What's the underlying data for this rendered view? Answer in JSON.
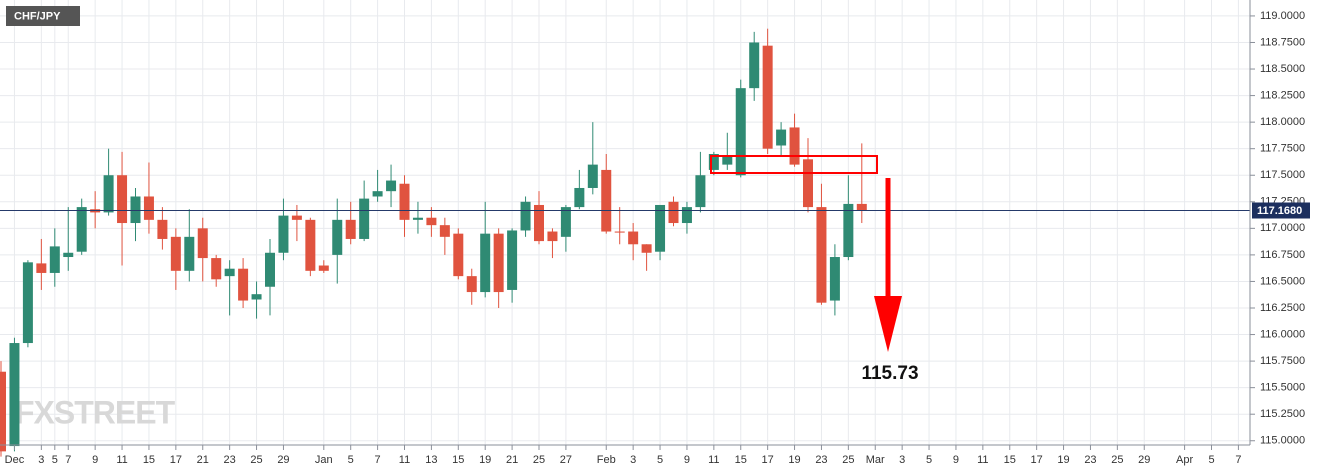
{
  "chart_data": {
    "type": "candlestick",
    "symbol": "CHF/JPY",
    "watermark": "FXSTREET",
    "categories": [
      null,
      "Dec",
      null,
      "3",
      "5",
      "7",
      null,
      "9",
      null,
      "11",
      null,
      "15",
      null,
      "17",
      null,
      "21",
      null,
      "23",
      null,
      "25",
      null,
      "29",
      null,
      null,
      "Jan",
      null,
      "5",
      null,
      "7",
      null,
      "11",
      null,
      "13",
      null,
      "15",
      null,
      "19",
      null,
      "21",
      null,
      "25",
      null,
      "27",
      null,
      null,
      "Feb",
      null,
      "3",
      null,
      "5",
      null,
      "9",
      null,
      "11",
      null,
      "15",
      null,
      "17",
      null,
      "19",
      null,
      "23",
      null,
      "25",
      null,
      "Mar",
      null,
      "3",
      null,
      "5",
      null,
      "9",
      null,
      "11",
      null,
      "15",
      null,
      "17",
      null,
      "19",
      null,
      "23",
      null,
      "25",
      null,
      "29",
      null,
      null,
      "Apr",
      null,
      "5",
      null,
      "7",
      null
    ],
    "open": [
      115.65,
      114.95,
      115.92,
      116.67,
      116.58,
      116.73,
      116.78,
      117.18,
      117.15,
      117.5,
      117.05,
      117.3,
      117.08,
      116.92,
      116.6,
      117.0,
      116.72,
      116.55,
      116.62,
      116.33,
      116.45,
      116.77,
      117.12,
      117.08,
      116.65,
      116.75,
      117.08,
      116.9,
      117.3,
      117.35,
      117.42,
      117.08,
      117.1,
      117.03,
      116.95,
      116.55,
      116.4,
      116.95,
      116.42,
      116.98,
      117.22,
      116.97,
      116.92,
      117.2,
      117.38,
      117.55,
      116.97,
      116.97,
      116.85,
      116.78,
      117.25,
      117.05,
      117.2,
      117.55,
      117.6,
      117.5,
      118.32,
      118.72,
      117.78,
      117.95,
      117.65,
      117.2,
      116.32,
      116.73,
      117.23,
      null,
      null,
      null,
      null,
      null,
      null,
      null,
      null,
      null,
      null,
      null,
      null,
      null,
      null,
      null,
      null,
      null,
      null,
      null,
      null,
      null,
      null,
      null,
      null,
      null,
      null,
      null,
      null,
      null
    ],
    "high": [
      115.75,
      115.97,
      116.7,
      116.9,
      117.0,
      117.2,
      117.28,
      117.35,
      117.75,
      117.72,
      117.38,
      117.62,
      117.2,
      117.0,
      117.18,
      117.1,
      116.75,
      116.7,
      116.72,
      116.5,
      116.9,
      117.28,
      117.22,
      117.1,
      116.7,
      117.28,
      117.25,
      117.45,
      117.55,
      117.6,
      117.5,
      117.25,
      117.2,
      117.1,
      117.0,
      116.62,
      117.25,
      117.0,
      117.0,
      117.3,
      117.35,
      117.0,
      117.22,
      117.55,
      118.0,
      117.7,
      117.2,
      117.05,
      116.85,
      117.22,
      117.3,
      117.25,
      117.72,
      117.72,
      117.9,
      118.4,
      118.85,
      118.88,
      118.0,
      118.08,
      117.85,
      117.42,
      116.85,
      117.5,
      117.8,
      null,
      null,
      null,
      null,
      null,
      null,
      null,
      null,
      null,
      null,
      null,
      null,
      null,
      null,
      null,
      null,
      null,
      null,
      null,
      null,
      null,
      null,
      null,
      null,
      null,
      null,
      null,
      null,
      null
    ],
    "low": [
      114.85,
      114.9,
      115.88,
      116.42,
      116.45,
      116.6,
      116.75,
      117.0,
      117.12,
      116.65,
      116.88,
      116.95,
      116.8,
      116.42,
      116.5,
      116.5,
      116.45,
      116.18,
      116.25,
      116.15,
      116.18,
      116.7,
      116.88,
      116.55,
      116.58,
      116.48,
      116.85,
      116.88,
      117.25,
      117.2,
      116.92,
      116.95,
      116.92,
      116.75,
      116.52,
      116.28,
      116.35,
      116.25,
      116.3,
      116.92,
      116.85,
      116.72,
      116.78,
      117.18,
      117.32,
      116.95,
      116.85,
      116.7,
      116.6,
      116.7,
      117.02,
      116.95,
      117.15,
      117.5,
      117.55,
      117.48,
      118.2,
      117.7,
      117.68,
      117.58,
      117.15,
      116.28,
      116.18,
      116.7,
      117.05,
      null,
      null,
      null,
      null,
      null,
      null,
      null,
      null,
      null,
      null,
      null,
      null,
      null,
      null,
      null,
      null,
      null,
      null,
      null,
      null,
      null,
      null,
      null,
      null,
      null,
      null,
      null,
      null,
      null
    ],
    "close": [
      114.9,
      115.92,
      116.68,
      116.58,
      116.83,
      116.77,
      117.2,
      117.15,
      117.5,
      117.05,
      117.3,
      117.08,
      116.9,
      116.6,
      116.92,
      116.72,
      116.52,
      116.62,
      116.32,
      116.38,
      116.77,
      117.12,
      117.08,
      116.6,
      116.6,
      117.08,
      116.9,
      117.28,
      117.35,
      117.45,
      117.08,
      117.1,
      117.03,
      116.92,
      116.55,
      116.4,
      116.95,
      116.4,
      116.98,
      117.25,
      116.88,
      116.88,
      117.2,
      117.38,
      117.6,
      116.97,
      116.96,
      116.85,
      116.77,
      117.22,
      117.05,
      117.2,
      117.5,
      117.7,
      117.68,
      118.32,
      118.75,
      117.75,
      117.93,
      117.6,
      117.2,
      116.3,
      116.73,
      117.23,
      117.17,
      null,
      null,
      null,
      null,
      null,
      null,
      null,
      null,
      null,
      null,
      null,
      null,
      null,
      null,
      null,
      null,
      null,
      null,
      null,
      null,
      null,
      null,
      null,
      null,
      null,
      null,
      null,
      null,
      null
    ],
    "up_color": "#2f8a73",
    "down_color": "#e0533f",
    "current_price": {
      "value": 117.168,
      "label": "117.1680"
    },
    "annotation": "115.73",
    "ylim": [
      114.96,
      119.15
    ],
    "yticks": [
      {
        "value": 115,
        "label": "115.0000"
      },
      {
        "value": 115.25,
        "label": "115.2500"
      },
      {
        "value": 115.5,
        "label": "115.5000"
      },
      {
        "value": 115.75,
        "label": "115.7500"
      },
      {
        "value": 116,
        "label": "116.0000"
      },
      {
        "value": 116.25,
        "label": "116.2500"
      },
      {
        "value": 116.5,
        "label": "116.5000"
      },
      {
        "value": 116.75,
        "label": "116.7500"
      },
      {
        "value": 117,
        "label": "117.0000"
      },
      {
        "value": 117.25,
        "label": "117.2500"
      },
      {
        "value": 117.5,
        "label": "117.5000"
      },
      {
        "value": 117.75,
        "label": "117.7500"
      },
      {
        "value": 118,
        "label": "118.0000"
      },
      {
        "value": 118.25,
        "label": "118.2500"
      },
      {
        "value": 118.5,
        "label": "118.5000"
      },
      {
        "value": 118.75,
        "label": "118.7500"
      },
      {
        "value": 119,
        "label": "119.0000"
      }
    ],
    "grid": true
  }
}
